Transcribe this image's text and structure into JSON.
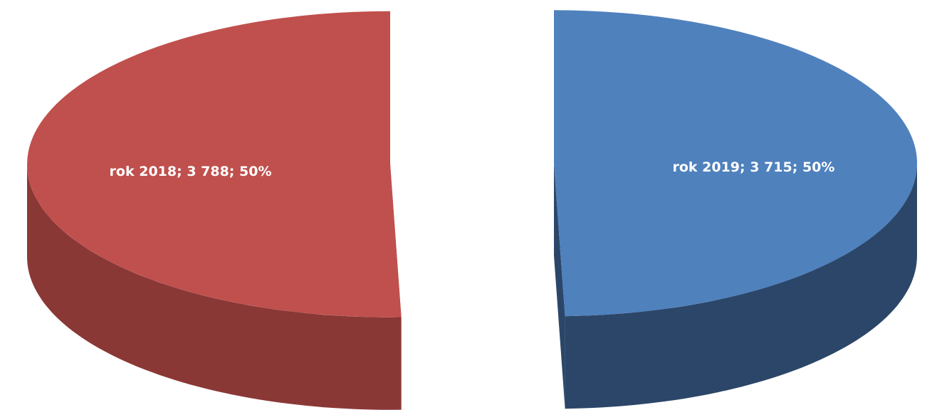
{
  "chart_data": {
    "type": "pie",
    "categories": [
      "rok 2018",
      "rok 2019"
    ],
    "values": [
      3788,
      3715
    ],
    "value_labels": [
      "rok 2018; 3 788; 50%",
      "rok 2019; 3 715; 50%"
    ],
    "colors": [
      "#c0504d",
      "#4f81bd"
    ],
    "side_colors": [
      "#8a3836",
      "#2b4668"
    ]
  }
}
